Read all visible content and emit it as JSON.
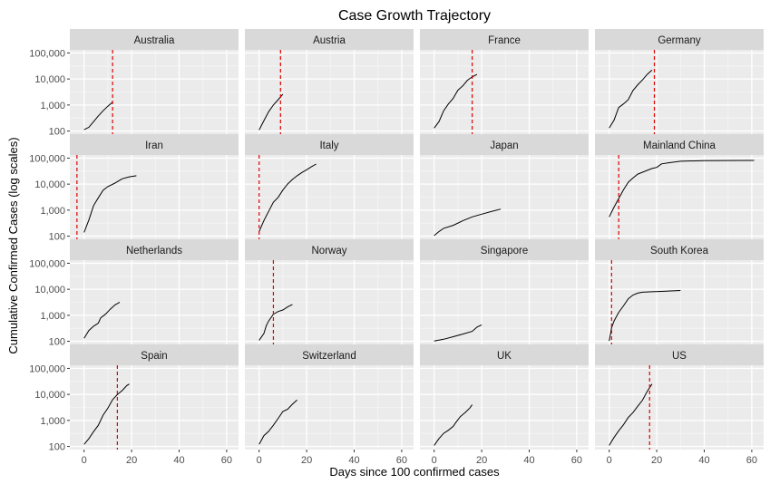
{
  "chart_data": {
    "type": "line",
    "title": "Case Growth Trajectory",
    "xlabel": "Days since 100 confirmed cases",
    "ylabel": "Cumulative Confirmed Cases (log scales)",
    "xlim": [
      -6,
      65
    ],
    "ylim": [
      100,
      100000
    ],
    "yscale": "log10",
    "xticks": [
      0,
      20,
      40,
      60
    ],
    "xtick_labels": [
      "0",
      "20",
      "40",
      "60"
    ],
    "yticks": [
      100,
      1000,
      10000,
      100000
    ],
    "ytick_labels": [
      "100",
      "1,000",
      "10,000",
      "100,000"
    ],
    "grid": true,
    "facet_layout": "4x4",
    "line_color": "#000000",
    "reference_line_color": "#e00000",
    "reference_line_style": "dashed",
    "panels": [
      {
        "name": "Australia",
        "vline_day": 12,
        "x": [
          0,
          2,
          4,
          6,
          8,
          10,
          12
        ],
        "y": [
          112,
          140,
          230,
          380,
          600,
          900,
          1300
        ]
      },
      {
        "name": "Austria",
        "vline_day": 9,
        "x": [
          0,
          2,
          4,
          6,
          8,
          10
        ],
        "y": [
          110,
          250,
          550,
          1000,
          1600,
          2600
        ]
      },
      {
        "name": "France",
        "vline_day": 16,
        "x": [
          0,
          2,
          4,
          6,
          8,
          10,
          12,
          14,
          16,
          18
        ],
        "y": [
          130,
          230,
          600,
          1100,
          1800,
          3700,
          5400,
          9000,
          12000,
          15000
        ]
      },
      {
        "name": "Germany",
        "vline_day": 19,
        "x": [
          0,
          2,
          4,
          6,
          8,
          10,
          12,
          14,
          16,
          18
        ],
        "y": [
          130,
          260,
          800,
          1100,
          1600,
          3600,
          6000,
          9200,
          15000,
          22000
        ]
      },
      {
        "name": "Iran",
        "vline_day": -3,
        "x": [
          0,
          2,
          4,
          6,
          8,
          10,
          13,
          16,
          19,
          22
        ],
        "y": [
          140,
          420,
          1500,
          3000,
          5800,
          8000,
          11000,
          16000,
          19000,
          21000
        ]
      },
      {
        "name": "Italy",
        "vline_day": 0,
        "x": [
          0,
          2,
          4,
          6,
          8,
          10,
          12,
          14,
          16,
          18,
          20,
          22,
          24
        ],
        "y": [
          150,
          400,
          900,
          2000,
          3100,
          5900,
          10100,
          15100,
          21000,
          28000,
          35700,
          47000,
          59000
        ]
      },
      {
        "name": "Japan",
        "vline_day": null,
        "x": [
          0,
          2,
          4,
          8,
          12,
          16,
          20,
          24,
          28
        ],
        "y": [
          105,
          150,
          200,
          260,
          390,
          550,
          700,
          880,
          1100
        ]
      },
      {
        "name": "Mainland China",
        "vline_day": 4,
        "x": [
          0,
          2,
          4,
          6,
          8,
          10,
          12,
          15,
          18,
          20,
          22,
          25,
          30,
          40,
          50,
          61
        ],
        "y": [
          550,
          1300,
          2800,
          6000,
          11800,
          17200,
          24300,
          31000,
          40000,
          44000,
          60000,
          66000,
          76000,
          80000,
          80800,
          81200
        ]
      },
      {
        "name": "Netherlands",
        "vline_day": null,
        "x": [
          0,
          2,
          4,
          6,
          7,
          9,
          11,
          13,
          15
        ],
        "y": [
          130,
          260,
          380,
          500,
          800,
          1100,
          1700,
          2500,
          3200
        ]
      },
      {
        "name": "Norway",
        "vline_day": 6,
        "x": [
          0,
          2,
          3,
          4,
          6,
          8,
          10,
          12,
          14
        ],
        "y": [
          110,
          200,
          400,
          600,
          1100,
          1400,
          1600,
          2100,
          2600
        ]
      },
      {
        "name": "Singapore",
        "vline_day": null,
        "x": [
          0,
          4,
          8,
          12,
          16,
          18,
          20
        ],
        "y": [
          102,
          120,
          150,
          190,
          240,
          350,
          430
        ]
      },
      {
        "name": "South Korea",
        "vline_day": 1,
        "x": [
          0,
          1,
          2,
          4,
          6,
          8,
          10,
          12,
          14,
          18,
          22,
          26,
          30
        ],
        "y": [
          104,
          330,
          600,
          1300,
          2300,
          4300,
          6000,
          7100,
          7700,
          8000,
          8300,
          8600,
          9000
        ]
      },
      {
        "name": "Spain",
        "vline_day": 14,
        "x": [
          0,
          2,
          4,
          6,
          8,
          10,
          12,
          14,
          16,
          18,
          19
        ],
        "y": [
          120,
          200,
          370,
          650,
          1600,
          2950,
          6300,
          9900,
          14000,
          22000,
          25000
        ]
      },
      {
        "name": "Switzerland",
        "vline_day": null,
        "x": [
          0,
          2,
          4,
          6,
          8,
          10,
          12,
          14,
          16
        ],
        "y": [
          120,
          260,
          380,
          650,
          1200,
          2200,
          2700,
          4200,
          6100
        ]
      },
      {
        "name": "UK",
        "vline_day": null,
        "x": [
          0,
          2,
          4,
          6,
          8,
          9,
          11,
          13,
          15,
          16
        ],
        "y": [
          110,
          200,
          320,
          420,
          590,
          800,
          1400,
          2000,
          3000,
          4000
        ]
      },
      {
        "name": "US",
        "vline_day": 17,
        "x": [
          0,
          2,
          4,
          6,
          8,
          10,
          12,
          14,
          16,
          18
        ],
        "y": [
          110,
          220,
          400,
          680,
          1300,
          2000,
          3500,
          6000,
          13000,
          25000
        ]
      }
    ]
  }
}
